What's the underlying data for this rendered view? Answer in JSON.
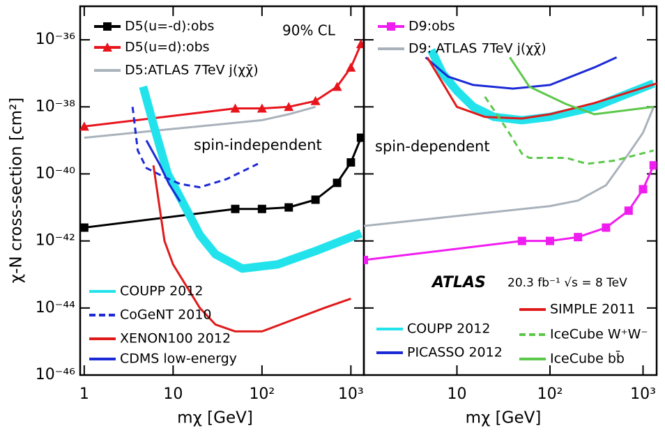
{
  "chart_data": [
    {
      "type": "line",
      "log_x": true,
      "log_y": true,
      "ylabel": "χ-N cross-section [cm²]",
      "xlabel": "mχ [GeV]",
      "xlim": [
        0.9,
        1400
      ],
      "ylim": [
        1e-46,
        1e-35
      ],
      "xticks": [
        1,
        10,
        {
          "value": 100,
          "label": "10²"
        },
        {
          "value": 1000,
          "label": "10³"
        }
      ],
      "yticks": [
        {
          "value": 1e-46,
          "label": "10⁻⁴⁶"
        },
        {
          "value": 1e-44,
          "label": "10⁻⁴⁴"
        },
        {
          "value": 1e-42,
          "label": "10⁻⁴²"
        },
        {
          "value": 1e-40,
          "label": "10⁻⁴⁰"
        },
        {
          "value": 1e-38,
          "label": "10⁻³⁸"
        },
        {
          "value": 1e-36,
          "label": "10⁻³⁶"
        }
      ],
      "annotations": [
        "90% CL",
        "spin-independent"
      ],
      "series": [
        {
          "name": "D5(u=-d):obs",
          "color": "#000000",
          "marker": "square",
          "x": [
            1,
            50,
            100,
            200,
            400,
            700,
            1000,
            1300
          ],
          "values": [
            2.5e-42,
            9e-42,
            9e-42,
            1e-41,
            1.7e-41,
            5.4e-41,
            2.2e-40,
            1.2e-39
          ]
        },
        {
          "name": "D5(u=d):obs",
          "color": "#e8141c",
          "marker": "triangle",
          "x": [
            1,
            50,
            100,
            200,
            400,
            700,
            1000,
            1300
          ],
          "values": [
            2.6e-39,
            9e-39,
            9e-39,
            1e-38,
            1.5e-38,
            4e-38,
            1.5e-37,
            7.5e-37
          ]
        },
        {
          "name": "D5:ATLAS 7TeV j(χχ̄)",
          "color": "#a9b2bb",
          "x": [
            1,
            10,
            100,
            200,
            400
          ],
          "values": [
            1.2e-39,
            2.2e-39,
            4e-39,
            6e-39,
            1e-38
          ]
        },
        {
          "name": "COUPP 2012",
          "color": "#22e3ec",
          "band": true,
          "x": [
            4.6,
            6,
            8.7,
            12,
            20,
            30,
            60,
            150,
            400,
            1300
          ],
          "values": [
            4e-38,
            3e-39,
            1e-40,
            2e-41,
            1.5e-42,
            4e-43,
            1.5e-43,
            2e-43,
            5e-43,
            1.7e-42
          ]
        },
        {
          "name": "CoGeNT 2010",
          "color": "#1c2ad6",
          "dash": true,
          "x": [
            3.5,
            4,
            5,
            8,
            12,
            20,
            40,
            90
          ],
          "values": [
            1e-38,
            5e-40,
            1.5e-40,
            8e-41,
            5e-41,
            4e-41,
            7e-41,
            2e-40
          ]
        },
        {
          "name": "XENON100 2012",
          "color": "#e01a1a",
          "x": [
            6,
            8,
            10,
            20,
            30,
            50,
            100,
            200,
            500,
            1000
          ],
          "values": [
            1.8e-40,
            1e-42,
            2e-43,
            1e-44,
            3.2e-45,
            2e-45,
            2e-45,
            4e-45,
            1e-44,
            1.9e-44
          ]
        },
        {
          "name": "CDMS low-energy",
          "color": "#1c2ad6",
          "x": [
            5,
            7,
            9,
            12
          ],
          "values": [
            1e-39,
            2e-40,
            5e-41,
            1.5e-41
          ]
        }
      ]
    },
    {
      "type": "line",
      "log_x": true,
      "log_y": true,
      "xlabel": "mχ [GeV]",
      "xlim": [
        1,
        1400
      ],
      "ylim": [
        1e-46,
        1e-35
      ],
      "xticks": [
        10,
        {
          "value": 100,
          "label": "10²"
        },
        {
          "value": 1000,
          "label": "10³"
        }
      ],
      "annotations": [
        "spin-dependent",
        "ATLAS",
        "20.3 fb⁻¹  √s = 8 TeV"
      ],
      "series": [
        {
          "name": "D9:obs",
          "color": "#f01df0",
          "marker": "square",
          "x": [
            1,
            50,
            100,
            200,
            400,
            700,
            1000,
            1300
          ],
          "values": [
            2.7e-43,
            1e-42,
            1e-42,
            1.3e-42,
            2.5e-42,
            8e-42,
            3.5e-41,
            1.8e-40
          ]
        },
        {
          "name": "D9: ATLAS 7TeV j(χχ̄)",
          "color": "#a9b2bb",
          "x": [
            1,
            100,
            200,
            400,
            700,
            1000,
            1300
          ],
          "values": [
            2.8e-42,
            1.1e-41,
            1.6e-41,
            4.6e-41,
            4e-40,
            1.7e-39,
            1e-38
          ]
        },
        {
          "name": "COUPP 2012",
          "color": "#22e3ec",
          "band": true,
          "x": [
            5.3,
            7,
            10,
            15,
            25,
            50,
            100,
            300,
            1300
          ],
          "values": [
            5e-37,
            1e-37,
            3e-38,
            1e-38,
            5e-39,
            4e-39,
            5e-39,
            1e-38,
            5e-38
          ]
        },
        {
          "name": "PICASSO 2012",
          "color": "#1c2ad6",
          "x": [
            4.6,
            8,
            15,
            40,
            100,
            300,
            520
          ],
          "values": [
            3e-37,
            8e-38,
            4.5e-38,
            3.5e-38,
            4.5e-38,
            1.5e-37,
            3e-37
          ]
        },
        {
          "name": "SIMPLE 2011",
          "color": "#e01a1a",
          "x": [
            4.8,
            10,
            20,
            50,
            100,
            300,
            1400
          ],
          "values": [
            3e-37,
            1e-38,
            5e-39,
            4.5e-39,
            6e-39,
            1.3e-38,
            5e-38
          ]
        },
        {
          "name": "IceCube W⁺W⁻",
          "color": "#5cc84a",
          "dash": true,
          "x": [
            20,
            35,
            50,
            60,
            150,
            250,
            500,
            1300
          ],
          "values": [
            2e-38,
            2e-39,
            4e-40,
            3e-40,
            3e-40,
            2e-40,
            2.5e-40,
            5e-40
          ]
        },
        {
          "name": "IceCube bb̄",
          "color": "#5cc84a",
          "x": [
            37,
            60,
            150,
            300,
            1300
          ],
          "values": [
            3e-37,
            4e-38,
            1.2e-38,
            6e-39,
            1e-38
          ]
        }
      ]
    }
  ]
}
